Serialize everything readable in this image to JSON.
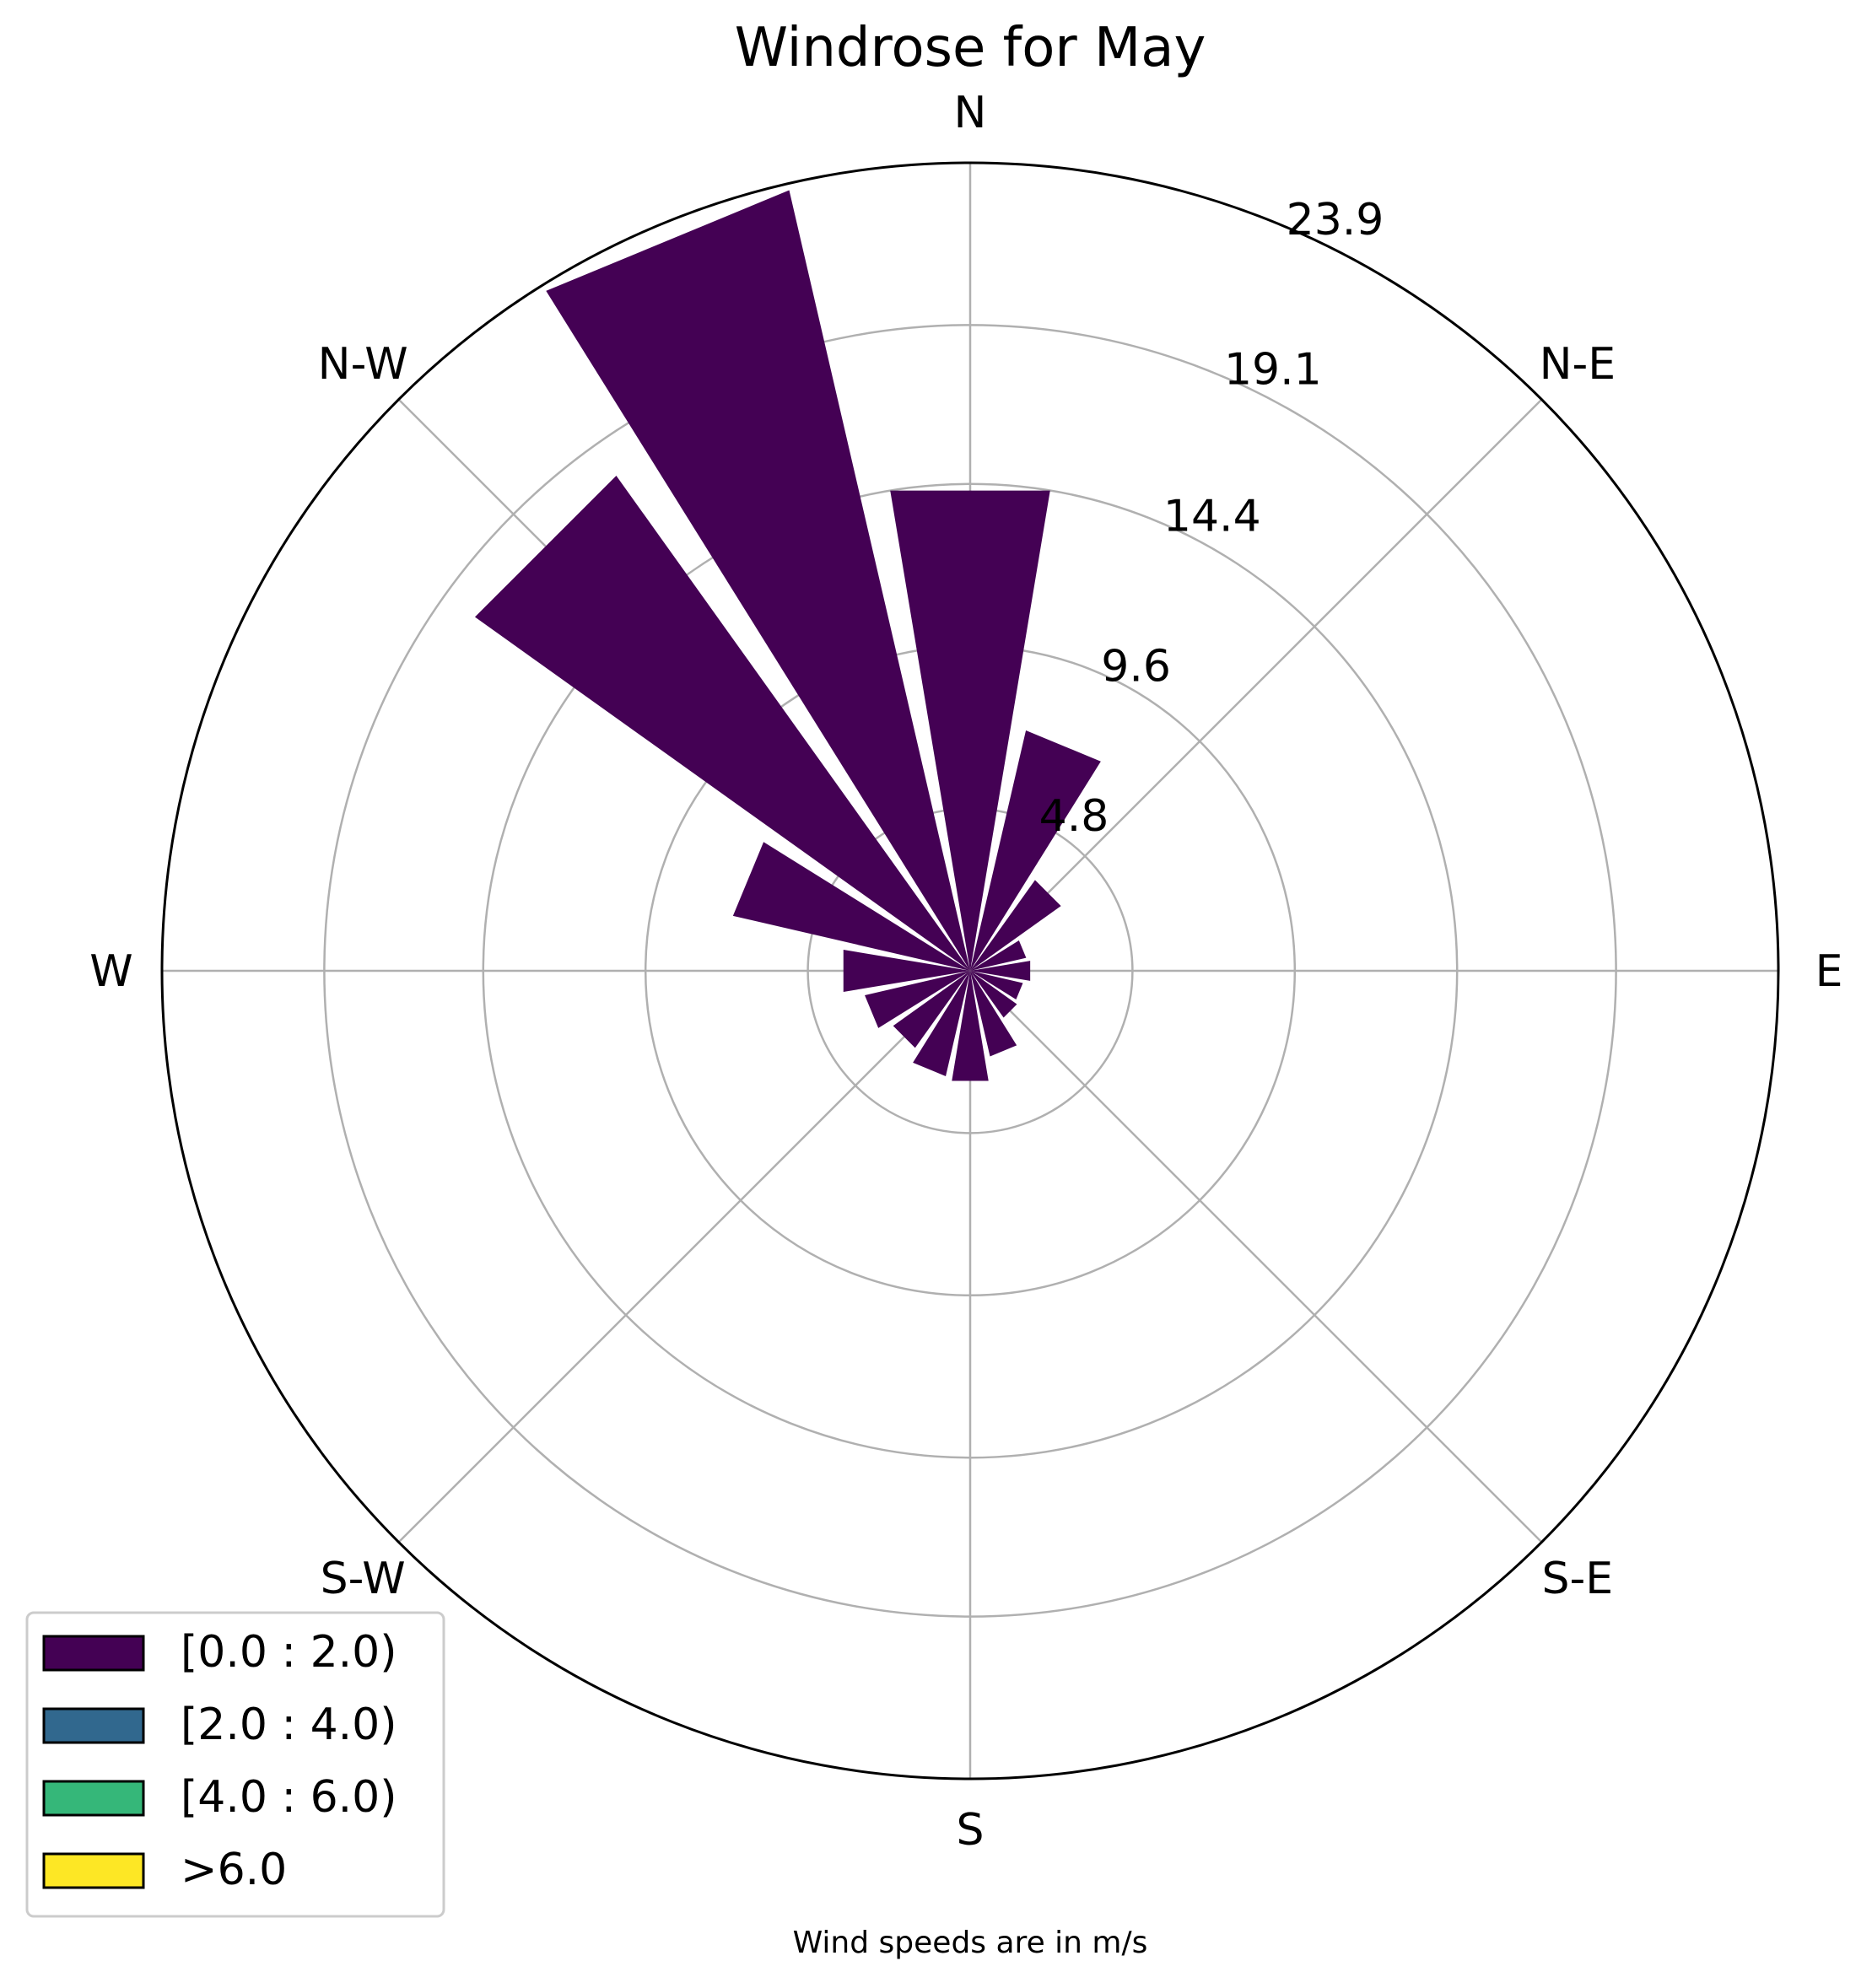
{
  "chart_data": {
    "type": "windrose",
    "title": "Windrose for May",
    "caption": "Wind speeds are in m/s",
    "direction_labels": [
      "E",
      "N-E",
      "N",
      "N-W",
      "W",
      "S-W",
      "S",
      "S-E"
    ],
    "radial_ticks": [
      "4.8",
      "9.6",
      "14.4",
      "19.1",
      "23.9"
    ],
    "radial_tick_values": [
      4.8,
      9.6,
      14.4,
      19.1,
      23.9
    ],
    "rmax": 23.9,
    "sector_count": 16,
    "sector_directions_deg": [
      0,
      22.5,
      45,
      67.5,
      90,
      112.5,
      135,
      157.5,
      180,
      202.5,
      225,
      247.5,
      270,
      292.5,
      315,
      337.5
    ],
    "series": [
      {
        "name": "[0.0 : 2.0)",
        "color": "#440154",
        "values": [
          14.4,
          7.3,
          3.3,
          1.7,
          1.8,
          1.6,
          1.7,
          2.6,
          3.3,
          3.2,
          2.8,
          3.2,
          3.8,
          7.2,
          18.0,
          23.7
        ]
      },
      {
        "name": "[2.0 : 4.0)",
        "color": "#31688e",
        "values": [
          0,
          0,
          0,
          0,
          0,
          0,
          0,
          0,
          0,
          0,
          0,
          0,
          0,
          0,
          0,
          0
        ]
      },
      {
        "name": "[4.0 : 6.0)",
        "color": "#35b779",
        "values": [
          0,
          0,
          0,
          0,
          0,
          0,
          0,
          0,
          0,
          0,
          0,
          0,
          0,
          0,
          0,
          0
        ]
      },
      {
        "name": ">6.0",
        "color": "#fde725",
        "values": [
          0,
          0,
          0,
          0,
          0,
          0,
          0,
          0,
          0,
          0,
          0,
          0,
          0,
          0,
          0,
          0
        ]
      }
    ],
    "legend": {
      "placement": "bottom-left",
      "entries": [
        "[0.0 : 2.0)",
        "[2.0 : 4.0)",
        "[4.0 : 6.0)",
        ">6.0"
      ]
    },
    "grid": true
  }
}
